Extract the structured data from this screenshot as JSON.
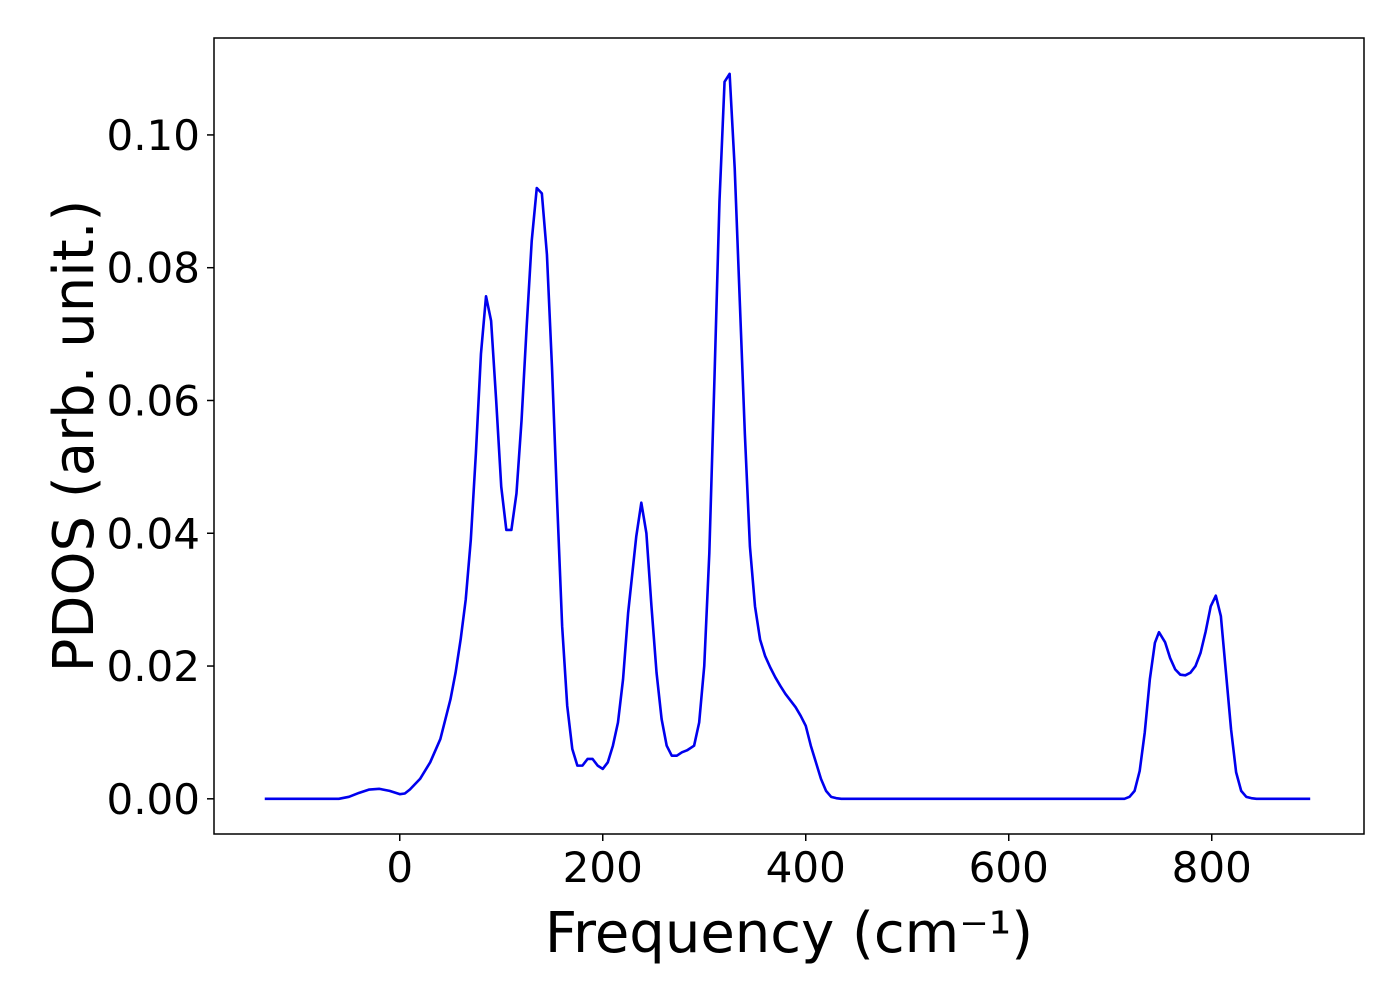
{
  "chart_data": {
    "type": "line",
    "xlabel": "Frequency (cm⁻¹)",
    "ylabel": "PDOS (arb. unit.)",
    "x": [
      -133,
      -60,
      -50,
      -40,
      -30,
      -20,
      -10,
      0,
      5,
      10,
      20,
      30,
      40,
      50,
      55,
      60,
      65,
      70,
      75,
      80,
      85,
      90,
      95,
      100,
      105,
      110,
      115,
      120,
      125,
      130,
      135,
      140,
      145,
      150,
      155,
      160,
      165,
      170,
      175,
      180,
      185,
      190,
      195,
      200,
      205,
      210,
      215,
      220,
      225,
      233,
      238,
      243,
      248,
      253,
      258,
      263,
      268,
      273,
      278,
      283,
      290,
      295,
      300,
      305,
      310,
      315,
      320,
      325,
      330,
      335,
      340,
      345,
      350,
      355,
      360,
      365,
      370,
      375,
      380,
      385,
      390,
      395,
      400,
      405,
      410,
      415,
      420,
      425,
      430,
      435,
      714,
      719,
      724,
      729,
      734,
      739,
      744,
      748,
      754,
      759,
      764,
      769,
      774,
      779,
      784,
      789,
      794,
      799,
      804,
      809,
      814,
      819,
      824,
      829,
      834,
      839,
      844,
      897
    ],
    "series": [
      {
        "name": "PDOS",
        "color": "#0000ee",
        "values": [
          0,
          0,
          0.0003,
          0.0009,
          0.0014,
          0.0015,
          0.0012,
          0.0007,
          0.0008,
          0.0014,
          0.003,
          0.0055,
          0.009,
          0.015,
          0.019,
          0.024,
          0.03,
          0.039,
          0.052,
          0.067,
          0.0757,
          0.072,
          0.06,
          0.047,
          0.0405,
          0.0405,
          0.046,
          0.057,
          0.071,
          0.084,
          0.092,
          0.0912,
          0.082,
          0.065,
          0.045,
          0.026,
          0.014,
          0.0075,
          0.005,
          0.005,
          0.006,
          0.006,
          0.005,
          0.0045,
          0.0055,
          0.008,
          0.0115,
          0.018,
          0.028,
          0.0395,
          0.0446,
          0.04,
          0.029,
          0.019,
          0.012,
          0.008,
          0.0065,
          0.0065,
          0.007,
          0.0073,
          0.008,
          0.0115,
          0.02,
          0.037,
          0.063,
          0.09,
          0.108,
          0.1092,
          0.095,
          0.075,
          0.055,
          0.038,
          0.029,
          0.024,
          0.0215,
          0.0198,
          0.0183,
          0.017,
          0.0158,
          0.0148,
          0.0138,
          0.0125,
          0.011,
          0.008,
          0.0055,
          0.003,
          0.0012,
          0.0003,
          0.0001,
          0,
          0,
          0.0003,
          0.0012,
          0.0042,
          0.01,
          0.018,
          0.0235,
          0.0251,
          0.0236,
          0.0212,
          0.0195,
          0.0187,
          0.0186,
          0.019,
          0.02,
          0.022,
          0.0252,
          0.029,
          0.0306,
          0.0275,
          0.019,
          0.0105,
          0.004,
          0.0012,
          0.0003,
          0.0001,
          0,
          0
        ]
      }
    ],
    "xlim": [
      -183,
      950
    ],
    "xticks": [
      0,
      200,
      400,
      600,
      800
    ],
    "ylim": [
      -0.0053,
      0.1146
    ],
    "yticks": [
      {
        "value": 0,
        "label": "0.00"
      },
      {
        "value": 0.02,
        "label": "0.02"
      },
      {
        "value": 0.04,
        "label": "0.04"
      },
      {
        "value": 0.06,
        "label": "0.06"
      },
      {
        "value": 0.08,
        "label": "0.08"
      },
      {
        "value": 0.1,
        "label": "0.10"
      }
    ],
    "grid": false
  }
}
